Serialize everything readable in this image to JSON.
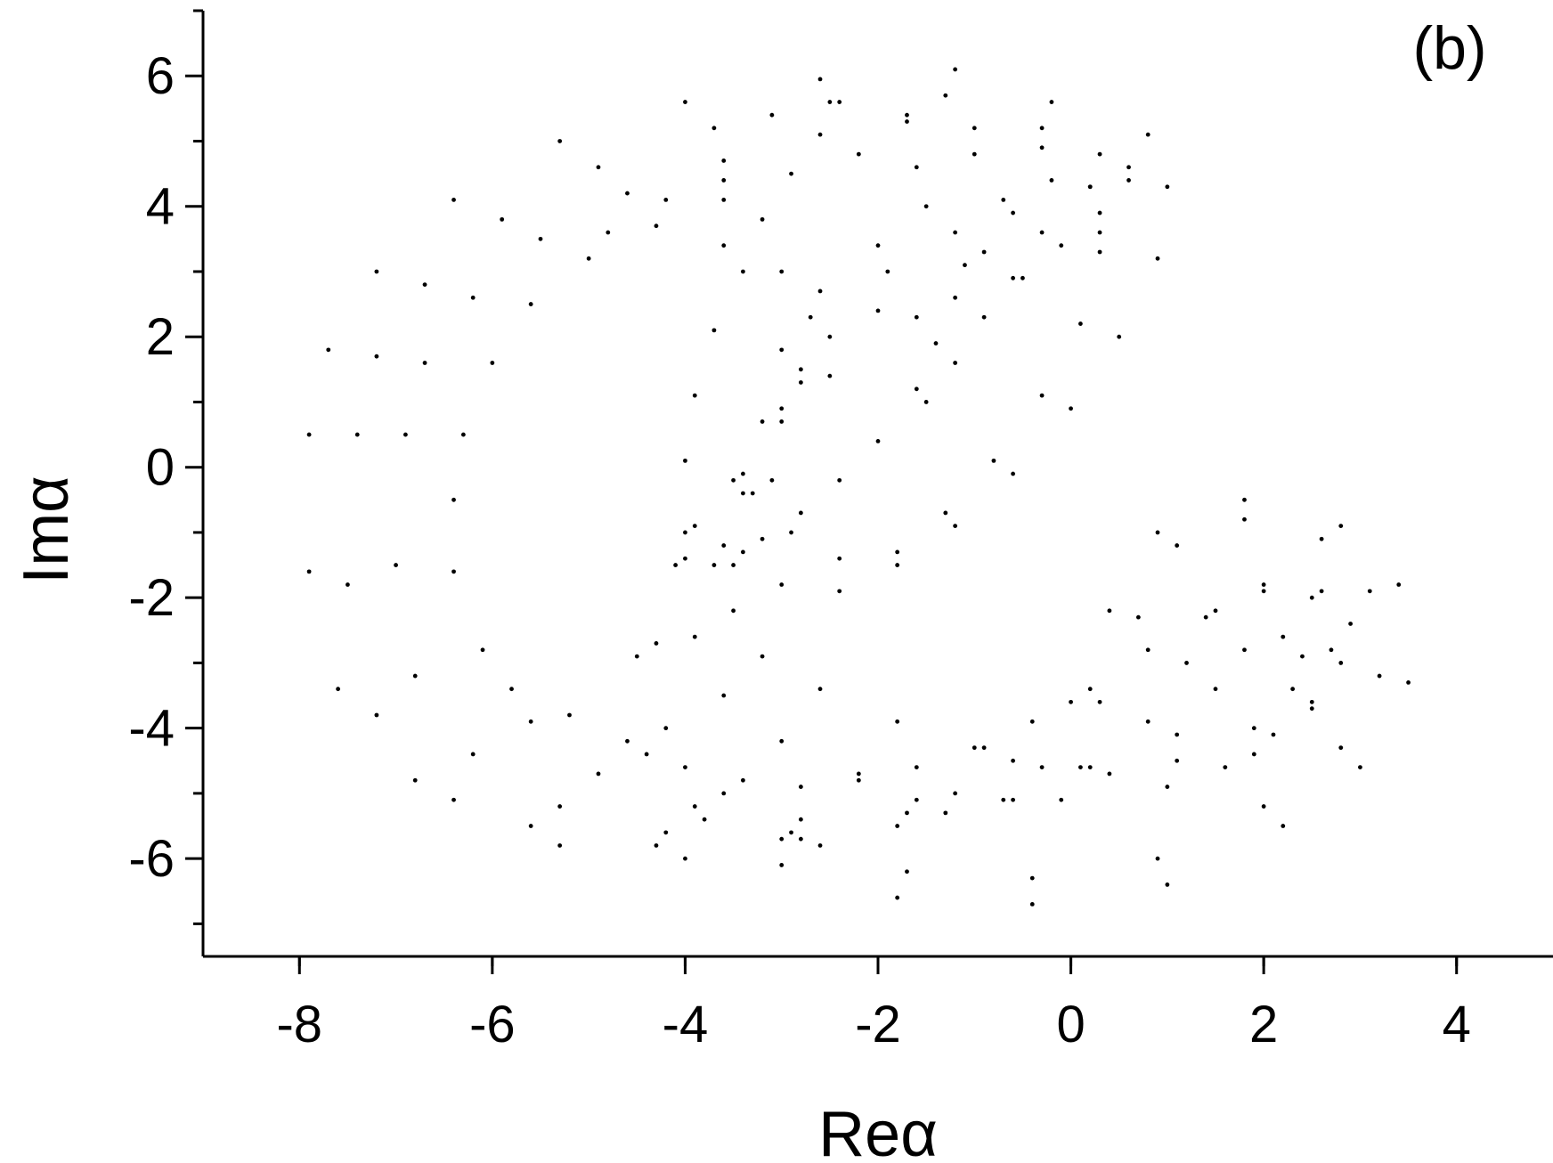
{
  "chart_data": {
    "type": "scatter",
    "title": "",
    "panel_label": "(b)",
    "xlabel": "Reα",
    "ylabel": "Imα",
    "xlim": [
      -9,
      5
    ],
    "ylim": [
      -7.5,
      7
    ],
    "xticks": [
      -8,
      -6,
      -4,
      -2,
      0,
      2,
      4
    ],
    "yticks": [
      -6,
      -4,
      -2,
      0,
      2,
      4,
      6
    ],
    "xtick_labels": [
      "-8",
      "-6",
      "-4",
      "-2",
      "0",
      "2",
      "4"
    ],
    "ytick_labels": [
      "-6",
      "-4",
      "-2",
      "0",
      "2",
      "4",
      "6"
    ],
    "grid": false,
    "marker_color": "#000000",
    "series": [
      {
        "points": [
          [
            -7.9,
            0.5
          ],
          [
            -7.7,
            1.8
          ],
          [
            -7.2,
            3.0
          ],
          [
            -6.4,
            4.1
          ],
          [
            -5.3,
            5.0
          ],
          [
            -4.0,
            5.6
          ],
          [
            -2.6,
            5.95
          ],
          [
            -1.2,
            6.1
          ],
          [
            -0.2,
            5.6
          ],
          [
            0.6,
            4.6
          ],
          [
            0.3,
            3.6
          ],
          [
            -0.6,
            2.9
          ],
          [
            -1.6,
            2.3
          ],
          [
            -2.5,
            1.4
          ],
          [
            -3.4,
            -0.1
          ],
          [
            -4.1,
            -1.5
          ],
          [
            -4.5,
            -2.9
          ],
          [
            -4.4,
            -4.4
          ],
          [
            -3.8,
            -5.4
          ],
          [
            -3.0,
            -6.1
          ],
          [
            -1.8,
            -6.6
          ],
          [
            -0.4,
            -6.7
          ],
          [
            1.0,
            -6.4
          ],
          [
            2.2,
            -5.5
          ],
          [
            3.0,
            -4.6
          ],
          [
            3.5,
            -3.3
          ],
          [
            3.4,
            -1.8
          ],
          [
            2.8,
            -0.9
          ],
          [
            1.8,
            -0.5
          ],
          [
            0.9,
            -1.0
          ],
          [
            0.4,
            -2.2
          ],
          [
            0.0,
            -3.6
          ],
          [
            -0.6,
            -4.5
          ],
          [
            -1.6,
            -5.1
          ],
          [
            -2.9,
            -5.6
          ],
          [
            -4.3,
            -5.8
          ],
          [
            -5.6,
            -5.5
          ],
          [
            -6.8,
            -4.8
          ],
          [
            -7.6,
            -3.4
          ],
          [
            -7.9,
            -1.6
          ],
          [
            -7.4,
            0.5
          ],
          [
            -7.2,
            1.7
          ],
          [
            -6.7,
            2.8
          ],
          [
            -5.9,
            3.8
          ],
          [
            -4.9,
            4.6
          ],
          [
            -3.7,
            5.2
          ],
          [
            -2.5,
            5.6
          ],
          [
            -1.3,
            5.7
          ],
          [
            -0.3,
            5.2
          ],
          [
            0.2,
            4.3
          ],
          [
            -0.3,
            3.6
          ],
          [
            -1.1,
            3.1
          ],
          [
            -2.0,
            2.4
          ],
          [
            -2.8,
            1.3
          ],
          [
            -3.5,
            -0.2
          ],
          [
            -4.0,
            -1.4
          ],
          [
            -4.3,
            -2.7
          ],
          [
            -4.2,
            -4.0
          ],
          [
            -3.6,
            -5.0
          ],
          [
            -2.8,
            -5.7
          ],
          [
            -1.7,
            -6.2
          ],
          [
            -0.4,
            -6.3
          ],
          [
            0.9,
            -6.0
          ],
          [
            2.0,
            -5.2
          ],
          [
            2.8,
            -4.3
          ],
          [
            3.2,
            -3.2
          ],
          [
            3.1,
            -1.9
          ],
          [
            2.6,
            -1.1
          ],
          [
            1.8,
            -0.8
          ],
          [
            1.1,
            -1.2
          ],
          [
            0.7,
            -2.3
          ],
          [
            0.3,
            -3.6
          ],
          [
            -0.3,
            -4.6
          ],
          [
            -1.3,
            -5.3
          ],
          [
            -2.6,
            -5.8
          ],
          [
            -4.0,
            -6.0
          ],
          [
            -5.3,
            -5.8
          ],
          [
            -6.4,
            -5.1
          ],
          [
            -7.2,
            -3.8
          ],
          [
            -7.5,
            -1.8
          ],
          [
            -6.9,
            0.5
          ],
          [
            -6.7,
            1.6
          ],
          [
            -6.2,
            2.6
          ],
          [
            -5.5,
            3.5
          ],
          [
            -4.6,
            4.2
          ],
          [
            -3.6,
            4.7
          ],
          [
            -2.6,
            5.1
          ],
          [
            -1.7,
            5.3
          ],
          [
            -1.0,
            4.8
          ],
          [
            -0.7,
            4.1
          ],
          [
            -1.2,
            3.6
          ],
          [
            -1.9,
            3.0
          ],
          [
            -2.5,
            2.0
          ],
          [
            -3.0,
            0.9
          ],
          [
            -3.4,
            -0.4
          ],
          [
            -3.7,
            -1.5
          ],
          [
            -3.9,
            -2.6
          ],
          [
            -3.6,
            -3.5
          ],
          [
            -3.0,
            -4.2
          ],
          [
            -2.2,
            -4.7
          ],
          [
            -1.2,
            -5.0
          ],
          [
            -0.1,
            -5.1
          ],
          [
            1.0,
            -4.9
          ],
          [
            1.9,
            -4.4
          ],
          [
            2.5,
            -3.7
          ],
          [
            2.7,
            -2.8
          ],
          [
            2.5,
            -2.0
          ],
          [
            2.0,
            -1.8
          ],
          [
            1.5,
            -2.2
          ],
          [
            1.2,
            -3.0
          ],
          [
            0.8,
            -3.9
          ],
          [
            0.2,
            -4.6
          ],
          [
            -0.7,
            -5.1
          ],
          [
            -1.8,
            -5.5
          ],
          [
            -3.0,
            -5.7
          ],
          [
            -4.2,
            -5.6
          ],
          [
            -5.3,
            -5.2
          ],
          [
            -6.2,
            -4.4
          ],
          [
            -6.8,
            -3.2
          ],
          [
            -7.0,
            -1.5
          ],
          [
            -6.3,
            0.5
          ],
          [
            -6.0,
            1.6
          ],
          [
            -5.6,
            2.5
          ],
          [
            -5.0,
            3.2
          ],
          [
            -4.3,
            3.7
          ],
          [
            -3.6,
            4.1
          ],
          [
            -2.9,
            4.5
          ],
          [
            -2.2,
            4.8
          ],
          [
            -1.6,
            4.6
          ],
          [
            -1.5,
            4.0
          ],
          [
            -2.0,
            3.4
          ],
          [
            -2.6,
            2.7
          ],
          [
            -3.0,
            1.8
          ],
          [
            -3.2,
            0.7
          ],
          [
            -3.3,
            -0.4
          ],
          [
            -3.4,
            -1.3
          ],
          [
            -3.5,
            -2.2
          ],
          [
            -3.2,
            -2.9
          ],
          [
            -2.6,
            -3.4
          ],
          [
            -1.8,
            -3.9
          ],
          [
            -0.9,
            -4.3
          ],
          [
            0.1,
            -4.6
          ],
          [
            1.1,
            -4.5
          ],
          [
            1.9,
            -4.0
          ],
          [
            2.3,
            -3.4
          ],
          [
            2.4,
            -2.9
          ],
          [
            2.2,
            -2.6
          ],
          [
            1.8,
            -2.8
          ],
          [
            1.5,
            -3.4
          ],
          [
            1.1,
            -4.1
          ],
          [
            0.4,
            -4.7
          ],
          [
            -0.6,
            -5.1
          ],
          [
            -1.7,
            -5.3
          ],
          [
            -2.8,
            -5.4
          ],
          [
            -3.9,
            -5.2
          ],
          [
            -4.9,
            -4.7
          ],
          [
            -5.6,
            -3.9
          ],
          [
            -6.1,
            -2.8
          ],
          [
            -6.4,
            -1.6
          ],
          [
            -6.4,
            -0.5
          ],
          [
            -4.8,
            3.6
          ],
          [
            -4.2,
            4.1
          ],
          [
            -3.6,
            4.4
          ],
          [
            -3.2,
            3.8
          ],
          [
            -3.4,
            3.0
          ],
          [
            -3.7,
            2.1
          ],
          [
            -3.9,
            1.1
          ],
          [
            -4.0,
            0.1
          ],
          [
            -3.9,
            -0.9
          ],
          [
            -3.5,
            -1.5
          ],
          [
            -3.0,
            -1.8
          ],
          [
            -2.4,
            -1.9
          ],
          [
            -1.8,
            -1.5
          ],
          [
            -1.2,
            -0.9
          ],
          [
            -0.6,
            -0.1
          ],
          [
            0.0,
            0.9
          ],
          [
            0.5,
            2.0
          ],
          [
            0.9,
            3.2
          ],
          [
            1.0,
            4.3
          ],
          [
            0.8,
            5.1
          ],
          [
            -3.6,
            3.4
          ],
          [
            -3.0,
            3.0
          ],
          [
            -2.7,
            2.3
          ],
          [
            -2.8,
            1.5
          ],
          [
            -3.0,
            0.7
          ],
          [
            -3.1,
            -0.2
          ],
          [
            -2.9,
            -1.0
          ],
          [
            -2.4,
            -1.4
          ],
          [
            -1.8,
            -1.3
          ],
          [
            -1.3,
            -0.7
          ],
          [
            -0.8,
            0.1
          ],
          [
            -0.3,
            1.1
          ],
          [
            0.1,
            2.2
          ],
          [
            0.3,
            3.3
          ],
          [
            0.2,
            4.3
          ],
          [
            -0.3,
            4.9
          ],
          [
            -1.0,
            5.2
          ],
          [
            -1.7,
            5.4
          ],
          [
            -2.4,
            5.6
          ],
          [
            -3.1,
            5.4
          ],
          [
            -1.6,
            1.2
          ],
          [
            -1.4,
            1.9
          ],
          [
            -1.2,
            2.6
          ],
          [
            -0.9,
            3.3
          ],
          [
            -0.6,
            3.9
          ],
          [
            -0.2,
            4.4
          ],
          [
            0.3,
            4.8
          ],
          [
            0.6,
            4.4
          ],
          [
            0.3,
            3.9
          ],
          [
            -0.1,
            3.4
          ],
          [
            -0.5,
            2.9
          ],
          [
            -0.9,
            2.3
          ],
          [
            -1.2,
            1.6
          ],
          [
            -1.5,
            1.0
          ],
          [
            -2.0,
            0.4
          ],
          [
            -2.4,
            -0.2
          ],
          [
            -2.8,
            -0.7
          ],
          [
            -3.2,
            -1.1
          ],
          [
            -3.6,
            -1.2
          ],
          [
            -4.0,
            -1.0
          ],
          [
            -5.8,
            -3.4
          ],
          [
            -5.2,
            -3.8
          ],
          [
            -4.6,
            -4.2
          ],
          [
            -4.0,
            -4.6
          ],
          [
            -3.4,
            -4.8
          ],
          [
            -2.8,
            -4.9
          ],
          [
            -2.2,
            -4.8
          ],
          [
            -1.6,
            -4.6
          ],
          [
            -1.0,
            -4.3
          ],
          [
            -0.4,
            -3.9
          ],
          [
            0.2,
            -3.4
          ],
          [
            0.8,
            -2.8
          ],
          [
            1.4,
            -2.3
          ],
          [
            2.0,
            -1.9
          ],
          [
            2.6,
            -1.9
          ],
          [
            2.9,
            -2.4
          ],
          [
            2.8,
            -3.0
          ],
          [
            2.5,
            -3.6
          ],
          [
            2.1,
            -4.1
          ],
          [
            1.6,
            -4.6
          ]
        ]
      }
    ]
  }
}
